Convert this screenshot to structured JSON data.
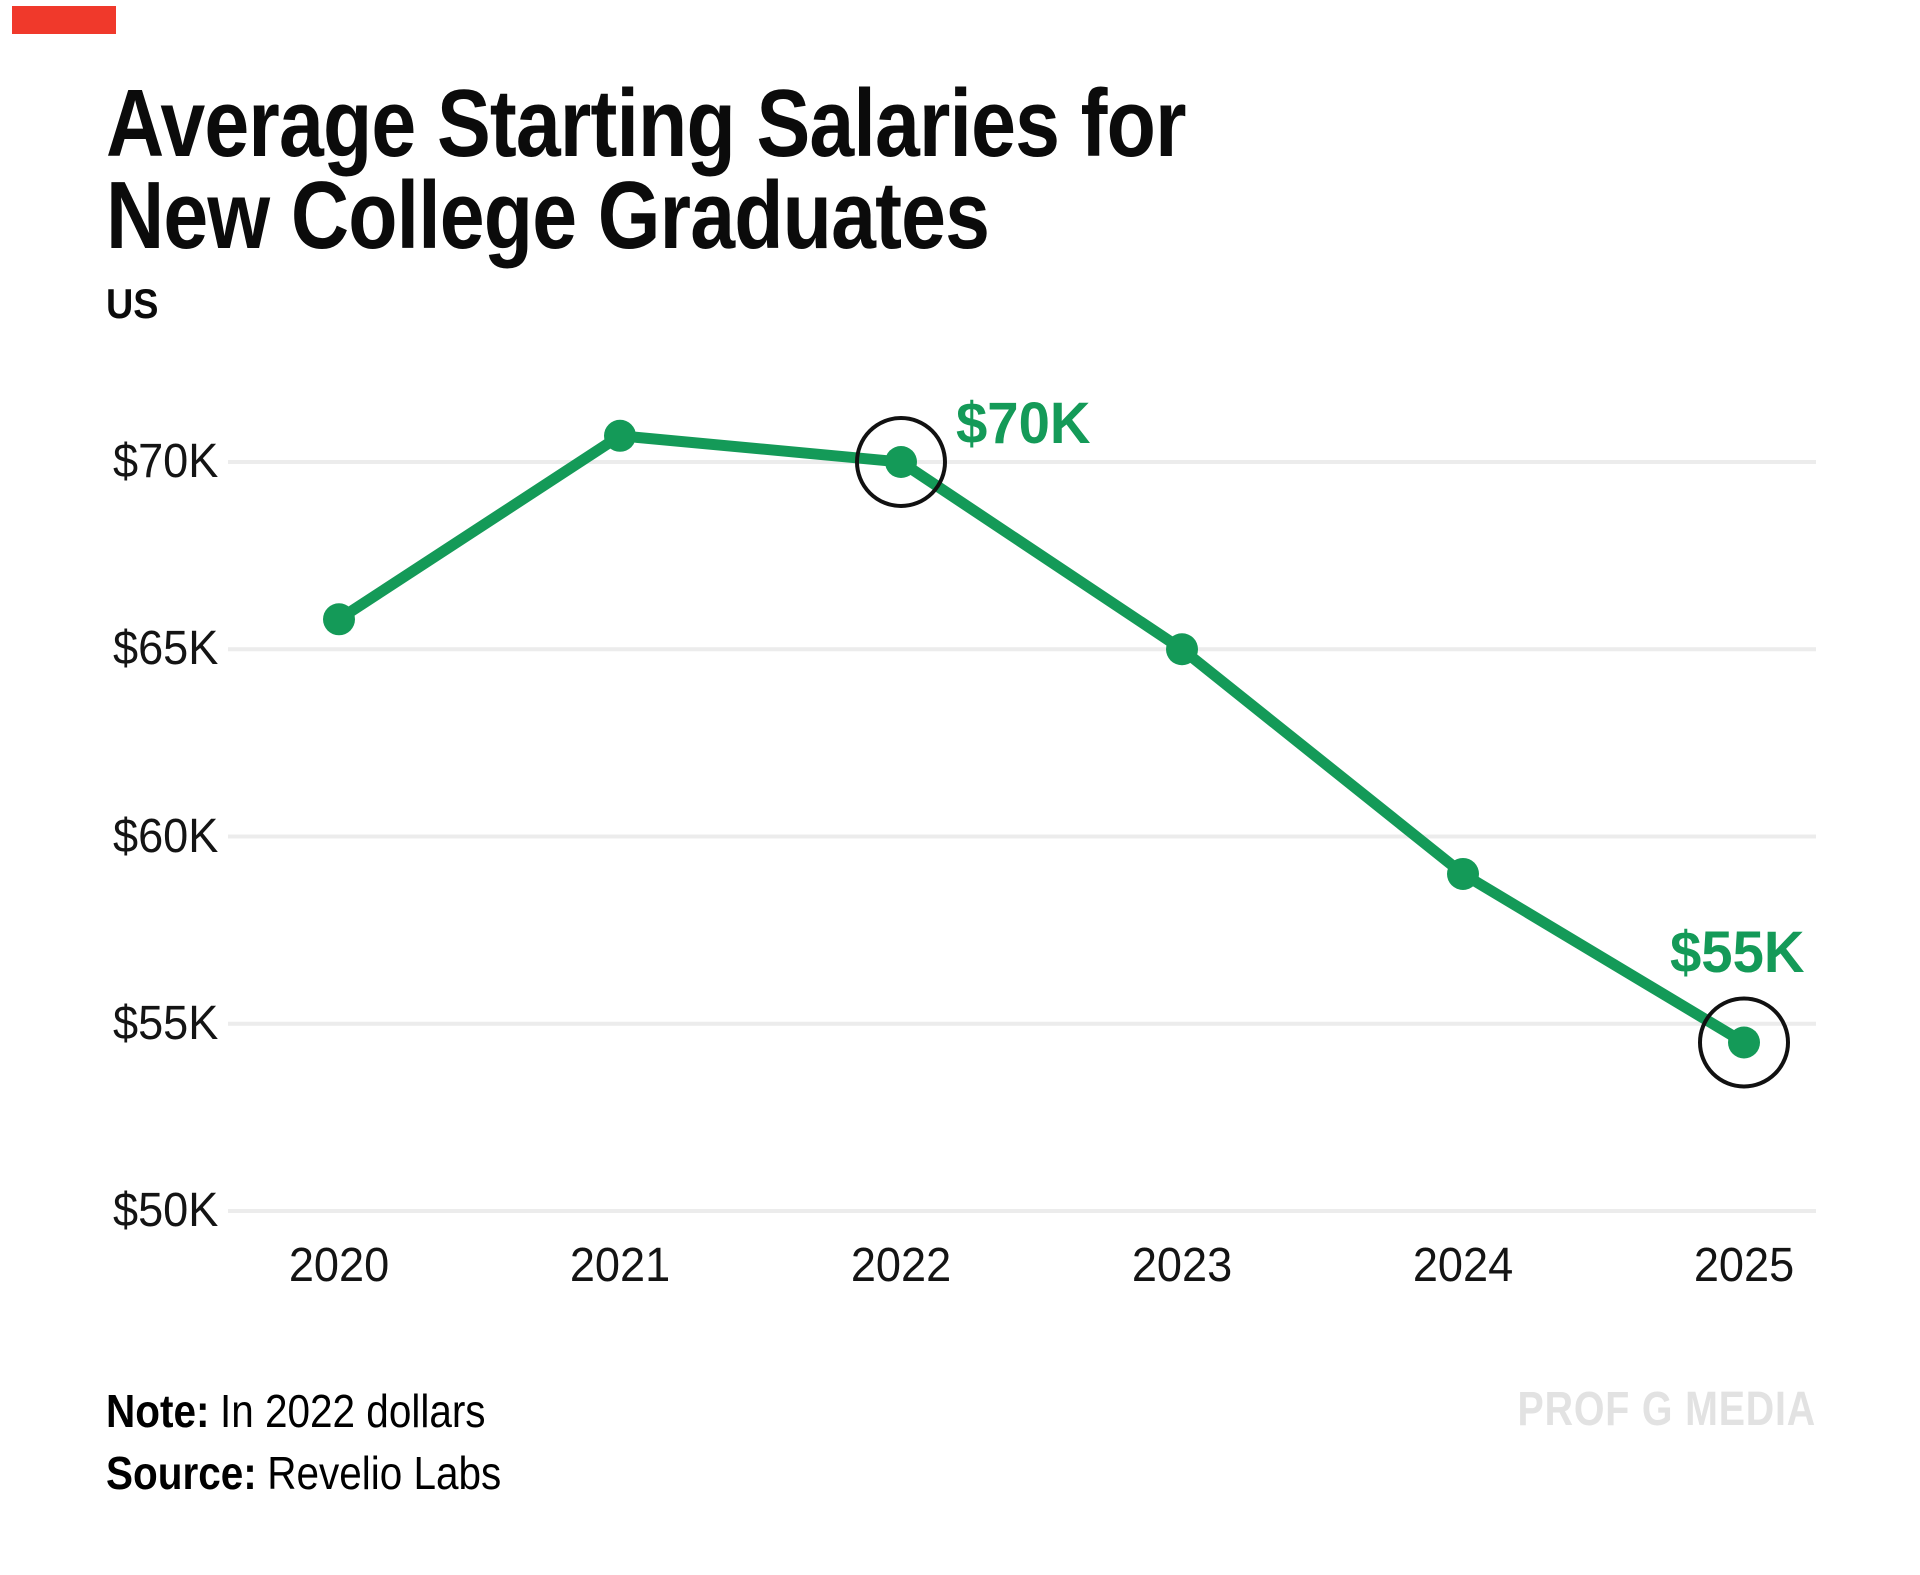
{
  "brand": {
    "bar_color": "#F0392B"
  },
  "header": {
    "title_line1": "Average Starting Salaries for",
    "title_line2": "New College Graduates",
    "subtitle": "US"
  },
  "chart_data": {
    "type": "line",
    "title": "Average Starting Salaries for New College Graduates",
    "subtitle": "US",
    "categories": [
      "2020",
      "2021",
      "2022",
      "2023",
      "2024",
      "2025"
    ],
    "series": [
      {
        "name": "Average starting salary (USD thousands)",
        "values": [
          65.8,
          70.7,
          70.0,
          65.0,
          59.0,
          54.5
        ]
      }
    ],
    "unit": "USD thousands (in 2022 dollars)",
    "ylim": [
      50,
      72
    ],
    "yticks": [
      "$70K",
      "$65K",
      "$60K",
      "$55K",
      "$50K"
    ],
    "ytick_values": [
      70,
      65,
      60,
      55,
      50
    ],
    "xlabel": "",
    "ylabel": "",
    "grid": "horizontal",
    "legend": "none",
    "line_color": "#149A58",
    "gridline_color": "#ECECEC",
    "annotation_color": "#149A58",
    "circle_color": "#111111",
    "annotations": [
      {
        "x": "2022",
        "label": "$70K",
        "circled": true
      },
      {
        "x": "2025",
        "label": "$55K",
        "circled": true
      }
    ]
  },
  "footer": {
    "note_label": "Note:",
    "note_text": "In 2022 dollars",
    "source_label": "Source:",
    "source_text": "Revelio Labs",
    "watermark": "PROF G MEDIA"
  }
}
